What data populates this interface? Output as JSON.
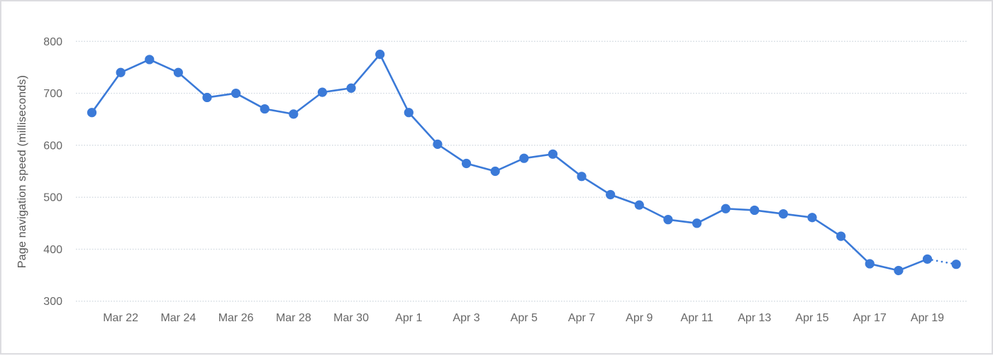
{
  "chart_data": {
    "type": "line",
    "title": "",
    "xlabel": "",
    "ylabel": "Page navigation speed (milliseconds)",
    "ylim": [
      300,
      800
    ],
    "y_ticks": [
      300,
      400,
      500,
      600,
      700,
      800
    ],
    "grid": "horizontal-dotted",
    "legend": "none",
    "x": [
      "Mar 21",
      "Mar 22",
      "Mar 23",
      "Mar 24",
      "Mar 25",
      "Mar 26",
      "Mar 27",
      "Mar 28",
      "Mar 29",
      "Mar 30",
      "Mar 31",
      "Apr 1",
      "Apr 2",
      "Apr 3",
      "Apr 4",
      "Apr 5",
      "Apr 6",
      "Apr 7",
      "Apr 8",
      "Apr 9",
      "Apr 10",
      "Apr 11",
      "Apr 12",
      "Apr 13",
      "Apr 14",
      "Apr 15",
      "Apr 16",
      "Apr 17",
      "Apr 18",
      "Apr 19",
      "Apr 20"
    ],
    "values": [
      663,
      740,
      765,
      740,
      692,
      700,
      670,
      660,
      702,
      710,
      775,
      663,
      602,
      565,
      550,
      575,
      583,
      540,
      505,
      485,
      457,
      450,
      478,
      475,
      468,
      461,
      425,
      372,
      359,
      381,
      371
    ],
    "x_tick_labels": [
      "Mar 22",
      "Mar 24",
      "Mar 26",
      "Mar 28",
      "Mar 30",
      "Apr 1",
      "Apr 3",
      "Apr 5",
      "Apr 7",
      "Apr 9",
      "Apr 11",
      "Apr 13",
      "Apr 15",
      "Apr 17",
      "Apr 19"
    ],
    "last_segment_style": "dotted",
    "series_color": "#3b7ad8",
    "gridline_color": "#d3dae1",
    "tick_label_color": "#666666",
    "axis_title_color": "#555555",
    "frame_border_color": "#dcdce0"
  }
}
